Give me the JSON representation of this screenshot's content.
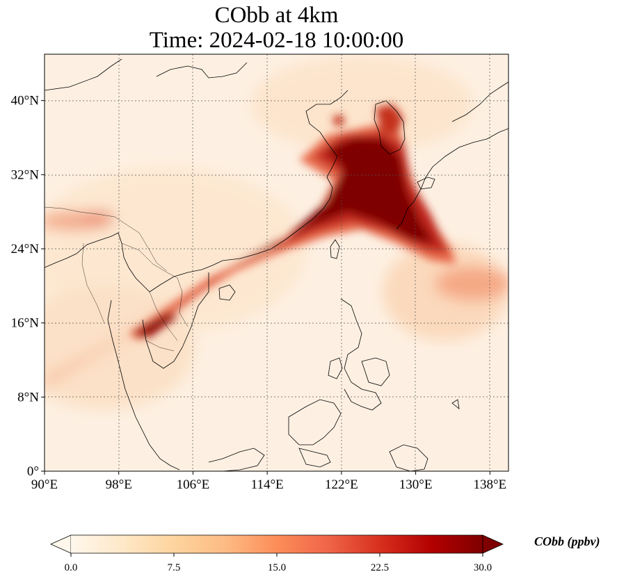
{
  "title": {
    "line1": "CObb at 4km",
    "line2": "Time: 2024-02-18 10:00:00"
  },
  "map": {
    "variable": "CObb",
    "level": "4km",
    "lon_range": [
      90,
      140
    ],
    "lat_range": [
      0,
      45
    ],
    "lon_ticks": [
      {
        "value": 90,
        "label": "90°E"
      },
      {
        "value": 98,
        "label": "98°E"
      },
      {
        "value": 106,
        "label": "106°E"
      },
      {
        "value": 114,
        "label": "114°E"
      },
      {
        "value": 122,
        "label": "122°E"
      },
      {
        "value": 130,
        "label": "130°E"
      },
      {
        "value": 138,
        "label": "138°E"
      }
    ],
    "lat_ticks": [
      {
        "value": 0,
        "label": "0°"
      },
      {
        "value": 8,
        "label": "8°N"
      },
      {
        "value": 16,
        "label": "16°N"
      },
      {
        "value": 24,
        "label": "24°N"
      },
      {
        "value": 32,
        "label": "32°N"
      },
      {
        "value": 40,
        "label": "40°N"
      }
    ],
    "gridlines": true,
    "coastlines": true,
    "colormap": "OrRd"
  },
  "colorbar": {
    "label": "CObb (ppbv)",
    "min": 0.0,
    "max": 30.0,
    "extend": "both",
    "ticks": [
      {
        "value": 0.0,
        "label": "0.0"
      },
      {
        "value": 7.5,
        "label": "7.5"
      },
      {
        "value": 15.0,
        "label": "15.0"
      },
      {
        "value": 22.5,
        "label": "22.5"
      },
      {
        "value": 30.0,
        "label": "30.0"
      }
    ],
    "colors": [
      "#fff7ec",
      "#fee8c8",
      "#fdd49e",
      "#fdbb84",
      "#fc8d59",
      "#ef6548",
      "#d7301f",
      "#b30000",
      "#7f0000"
    ]
  }
}
